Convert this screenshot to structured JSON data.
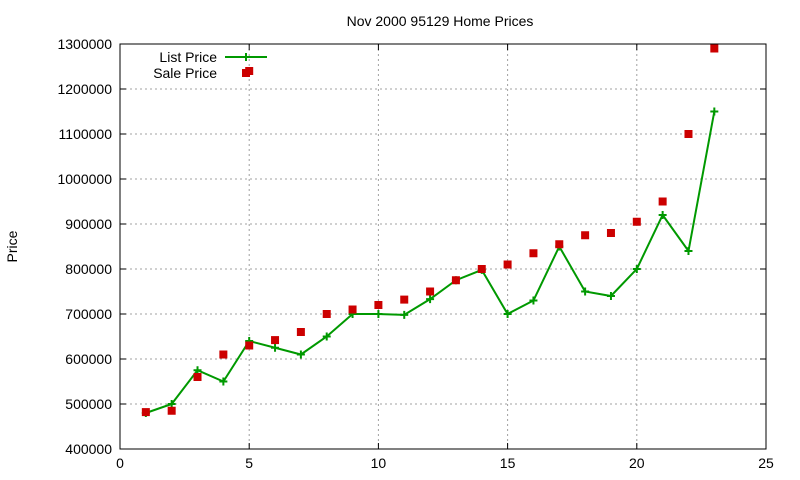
{
  "chart_data": {
    "type": "line",
    "title": "Nov 2000 95129 Home Prices",
    "xlabel": "",
    "ylabel": "Price",
    "xlim": [
      0,
      25
    ],
    "ylim": [
      400000,
      1300000
    ],
    "xticks": [
      0,
      5,
      10,
      15,
      20,
      25
    ],
    "yticks": [
      400000,
      500000,
      600000,
      700000,
      800000,
      900000,
      1000000,
      1100000,
      1200000,
      1300000
    ],
    "grid": true,
    "legend_position": "top-left",
    "series": [
      {
        "name": "List Price",
        "style": "line-with-plus-markers",
        "color": "#009900",
        "x": [
          1,
          2,
          3,
          4,
          5,
          6,
          7,
          8,
          9,
          10,
          11,
          12,
          13,
          14,
          15,
          16,
          17,
          18,
          19,
          20,
          21,
          22,
          23
        ],
        "values": [
          480000,
          500000,
          575000,
          550000,
          640000,
          625000,
          610000,
          650000,
          700000,
          700000,
          698000,
          733000,
          775000,
          798000,
          700000,
          730000,
          850000,
          750000,
          740000,
          800000,
          920000,
          840000,
          1150000
        ]
      },
      {
        "name": "Sale Price",
        "style": "square-markers",
        "color": "#cc0000",
        "x": [
          1,
          2,
          3,
          4,
          5,
          5,
          6,
          7,
          8,
          9,
          10,
          11,
          12,
          13,
          14,
          15,
          16,
          17,
          18,
          19,
          20,
          21,
          22,
          23
        ],
        "values": [
          482000,
          485000,
          560000,
          610000,
          630000,
          1240000,
          642000,
          660000,
          700000,
          710000,
          720000,
          732000,
          750000,
          775000,
          800000,
          810000,
          835000,
          855000,
          875000,
          880000,
          905000,
          950000,
          1100000,
          1290000
        ]
      }
    ]
  }
}
